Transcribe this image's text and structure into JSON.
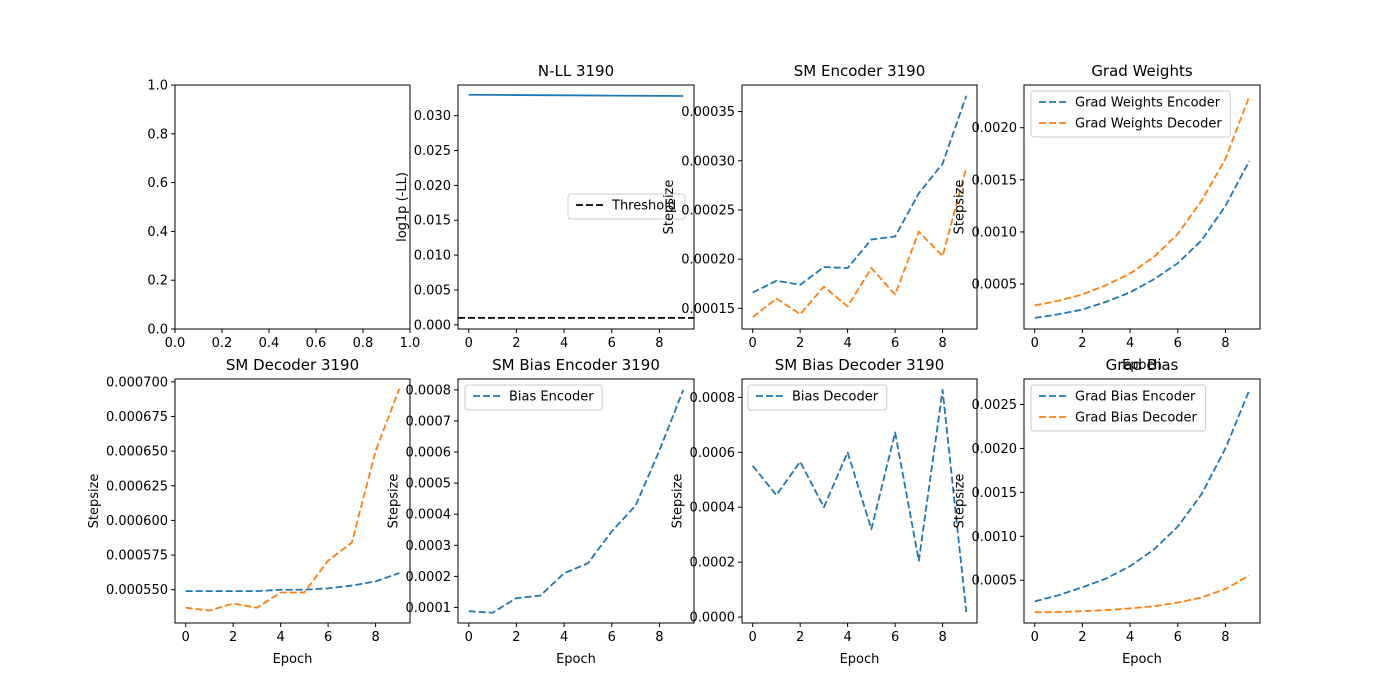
{
  "colors": {
    "blue": "#1f77b4",
    "orange": "#ff7f0e",
    "black": "#000000"
  },
  "chart_data": [
    {
      "type": "line",
      "title": "",
      "xlabel": "",
      "ylabel": "",
      "xlim": [
        0,
        1
      ],
      "ylim": [
        0,
        1
      ],
      "xticks": [
        0,
        0.2,
        0.4,
        0.6,
        0.8,
        1
      ],
      "xtick_labels": [
        "0.0",
        "0.2",
        "0.4",
        "0.6",
        "0.8",
        "1.0"
      ],
      "yticks": [
        0,
        0.2,
        0.4,
        0.6,
        0.8,
        1
      ],
      "ytick_labels": [
        "0.0",
        "0.2",
        "0.4",
        "0.6",
        "0.8",
        "1.0"
      ],
      "series": [],
      "legend": null
    },
    {
      "type": "line",
      "title": "N-LL 3190",
      "xlabel": "",
      "ylabel": "log1p (-LL)",
      "xlim": [
        -0.45,
        9.45
      ],
      "ylim": [
        -0.0006,
        0.0344
      ],
      "xticks": [
        0,
        2,
        4,
        6,
        8
      ],
      "xtick_labels": [
        "0",
        "2",
        "4",
        "6",
        "8"
      ],
      "yticks": [
        0,
        0.005,
        0.01,
        0.015,
        0.02,
        0.025,
        0.03
      ],
      "ytick_labels": [
        "0.000",
        "0.005",
        "0.010",
        "0.015",
        "0.020",
        "0.025",
        "0.030"
      ],
      "series": [
        {
          "color": "#1f77b4",
          "dash": "solid",
          "x": [
            0,
            1,
            2,
            3,
            4,
            5,
            6,
            7,
            8,
            9
          ],
          "y": [
            0.033,
            0.03298,
            0.03296,
            0.03294,
            0.03292,
            0.0329,
            0.03288,
            0.03286,
            0.03284,
            0.03282
          ]
        },
        {
          "name": "Threshold",
          "color": "#000000",
          "dash": "dashed",
          "hline": 0.001
        }
      ],
      "legend": {
        "placement": "center-right",
        "entries": [
          "Threshold"
        ]
      }
    },
    {
      "type": "line",
      "title": "SM Encoder 3190",
      "xlabel": "",
      "ylabel": "Stepsize",
      "xlim": [
        -0.45,
        9.45
      ],
      "ylim": [
        0.000129,
        0.000377
      ],
      "xticks": [
        0,
        2,
        4,
        6,
        8
      ],
      "xtick_labels": [
        "0",
        "2",
        "4",
        "6",
        "8"
      ],
      "yticks": [
        0.00015,
        0.0002,
        0.00025,
        0.0003,
        0.00035
      ],
      "ytick_labels": [
        "0.00015",
        "0.00020",
        "0.00025",
        "0.00030",
        "0.00035"
      ],
      "series": [
        {
          "color": "#1f77b4",
          "dash": "dashed",
          "x": [
            0,
            1,
            2,
            3,
            4,
            5,
            6,
            7,
            8,
            9
          ],
          "y": [
            0.000166,
            0.000178,
            0.000174,
            0.000192,
            0.000191,
            0.00022,
            0.000223,
            0.000267,
            0.000297,
            0.000366
          ]
        },
        {
          "color": "#ff7f0e",
          "dash": "dashed",
          "x": [
            0,
            1,
            2,
            3,
            4,
            5,
            6,
            7,
            8,
            9
          ],
          "y": [
            0.000141,
            0.00016,
            0.000144,
            0.000172,
            0.000152,
            0.000191,
            0.000164,
            0.000228,
            0.000203,
            0.000293
          ]
        }
      ],
      "legend": null
    },
    {
      "type": "line",
      "title": "Grad Weights",
      "xlabel": "Epoch",
      "ylabel": "Stepsize",
      "xlim": [
        -0.45,
        9.45
      ],
      "ylim": [
        6.85e-05,
        0.00241
      ],
      "xticks": [
        0,
        2,
        4,
        6,
        8
      ],
      "xtick_labels": [
        "0",
        "2",
        "4",
        "6",
        "8"
      ],
      "yticks": [
        0.0005,
        0.001,
        0.0015,
        0.002
      ],
      "ytick_labels": [
        "0.0005",
        "0.0010",
        "0.0015",
        "0.0020"
      ],
      "series": [
        {
          "name": "Grad Weights Encoder",
          "color": "#1f77b4",
          "dash": "dashed",
          "x": [
            0,
            1,
            2,
            3,
            4,
            5,
            6,
            7,
            8,
            9
          ],
          "y": [
            0.000175,
            0.00021,
            0.000255,
            0.00033,
            0.00042,
            0.000545,
            0.0007,
            0.00092,
            0.00125,
            0.00168
          ]
        },
        {
          "name": "Grad Weights Decoder",
          "color": "#ff7f0e",
          "dash": "dashed",
          "x": [
            0,
            1,
            2,
            3,
            4,
            5,
            6,
            7,
            8,
            9
          ],
          "y": [
            0.000295,
            0.00034,
            0.0004,
            0.00049,
            0.0006,
            0.00076,
            0.00098,
            0.0013,
            0.0017,
            0.0023
          ]
        }
      ],
      "legend": {
        "placement": "upper-left",
        "entries": [
          "Grad Weights Encoder",
          "Grad Weights Decoder"
        ]
      }
    },
    {
      "type": "line",
      "title": "SM Decoder 3190",
      "xlabel": "Epoch",
      "ylabel": "Stepsize",
      "xlim": [
        -0.45,
        9.45
      ],
      "ylim": [
        0.000526,
        0.000702
      ],
      "xticks": [
        0,
        2,
        4,
        6,
        8
      ],
      "xtick_labels": [
        "0",
        "2",
        "4",
        "6",
        "8"
      ],
      "yticks": [
        0.00055,
        0.000575,
        0.0006,
        0.000625,
        0.00065,
        0.000675,
        0.0007
      ],
      "ytick_labels": [
        "0.000550",
        "0.000575",
        "0.000600",
        "0.000625",
        "0.000650",
        "0.000675",
        "0.000700"
      ],
      "series": [
        {
          "color": "#1f77b4",
          "dash": "dashed",
          "x": [
            0,
            1,
            2,
            3,
            4,
            5,
            6,
            7,
            8,
            9
          ],
          "y": [
            0.000549,
            0.000549,
            0.000549,
            0.000549,
            0.00055,
            0.00055,
            0.000551,
            0.000553,
            0.000556,
            0.000562
          ]
        },
        {
          "color": "#ff7f0e",
          "dash": "dashed",
          "x": [
            0,
            1,
            2,
            3,
            4,
            5,
            6,
            7,
            8,
            9
          ],
          "y": [
            0.000537,
            0.000535,
            0.00054,
            0.000537,
            0.000548,
            0.000548,
            0.000571,
            0.000584,
            0.00065,
            0.000695
          ]
        }
      ],
      "legend": null
    },
    {
      "type": "line",
      "title": "SM Bias Encoder 3190",
      "xlabel": "Epoch",
      "ylabel": "Stepsize",
      "xlim": [
        -0.45,
        9.45
      ],
      "ylim": [
        5e-05,
        0.000835
      ],
      "xticks": [
        0,
        2,
        4,
        6,
        8
      ],
      "xtick_labels": [
        "0",
        "2",
        "4",
        "6",
        "8"
      ],
      "yticks": [
        0.0001,
        0.0002,
        0.0003,
        0.0004,
        0.0005,
        0.0006,
        0.0007,
        0.0008
      ],
      "ytick_labels": [
        "0.0001",
        "0.0002",
        "0.0003",
        "0.0004",
        "0.0005",
        "0.0006",
        "0.0007",
        "0.0008"
      ],
      "series": [
        {
          "name": "Bias Encoder",
          "color": "#1f77b4",
          "dash": "dashed",
          "x": [
            0,
            1,
            2,
            3,
            4,
            5,
            6,
            7,
            8,
            9
          ],
          "y": [
            8.8e-05,
            8.3e-05,
            0.00013,
            0.000138,
            0.00021,
            0.000242,
            0.000345,
            0.000428,
            0.000605,
            0.0008
          ]
        }
      ],
      "legend": {
        "placement": "upper-left",
        "entries": [
          "Bias Encoder"
        ]
      }
    },
    {
      "type": "line",
      "title": "SM Bias Decoder 3190",
      "xlabel": "Epoch",
      "ylabel": "Stepsize",
      "xlim": [
        -0.45,
        9.45
      ],
      "ylim": [
        -2.16e-05,
        0.000867
      ],
      "xticks": [
        0,
        2,
        4,
        6,
        8
      ],
      "xtick_labels": [
        "0",
        "2",
        "4",
        "6",
        "8"
      ],
      "yticks": [
        0,
        0.0002,
        0.0004,
        0.0006,
        0.0008
      ],
      "ytick_labels": [
        "0.0000",
        "0.0002",
        "0.0004",
        "0.0006",
        "0.0008"
      ],
      "series": [
        {
          "name": "Bias Decoder",
          "color": "#1f77b4",
          "dash": "dashed",
          "x": [
            0,
            1,
            2,
            3,
            4,
            5,
            6,
            7,
            8,
            9
          ],
          "y": [
            0.000551,
            0.000444,
            0.000566,
            0.0004,
            0.0006,
            0.00032,
            0.000672,
            0.000205,
            0.000827,
            1.8e-05
          ]
        }
      ],
      "legend": {
        "placement": "upper-left",
        "entries": [
          "Bias Decoder"
        ]
      }
    },
    {
      "type": "line",
      "title": "Grad Bias",
      "xlabel": "Epoch",
      "ylabel": "Stepsize",
      "xlim": [
        -0.45,
        9.45
      ],
      "ylim": [
        1.35e-05,
        0.00279
      ],
      "xticks": [
        0,
        2,
        4,
        6,
        8
      ],
      "xtick_labels": [
        "0",
        "2",
        "4",
        "6",
        "8"
      ],
      "yticks": [
        0.0005,
        0.001,
        0.0015,
        0.002,
        0.0025
      ],
      "ytick_labels": [
        "0.0005",
        "0.0010",
        "0.0015",
        "0.0020",
        "0.0025"
      ],
      "series": [
        {
          "name": "Grad Bias Encoder",
          "color": "#1f77b4",
          "dash": "dashed",
          "x": [
            0,
            1,
            2,
            3,
            4,
            5,
            6,
            7,
            8,
            9
          ],
          "y": [
            0.00026,
            0.00033,
            0.00042,
            0.00052,
            0.00066,
            0.00085,
            0.00111,
            0.00148,
            0.002,
            0.00266
          ]
        },
        {
          "name": "Grad Bias Decoder",
          "color": "#ff7f0e",
          "dash": "dashed",
          "x": [
            0,
            1,
            2,
            3,
            4,
            5,
            6,
            7,
            8,
            9
          ],
          "y": [
            0.000135,
            0.000138,
            0.000148,
            0.00016,
            0.00018,
            0.000205,
            0.000245,
            0.000305,
            0.0004,
            0.000555
          ]
        }
      ],
      "legend": {
        "placement": "upper-left",
        "entries": [
          "Grad Bias Encoder",
          "Grad Bias Decoder"
        ]
      }
    }
  ]
}
